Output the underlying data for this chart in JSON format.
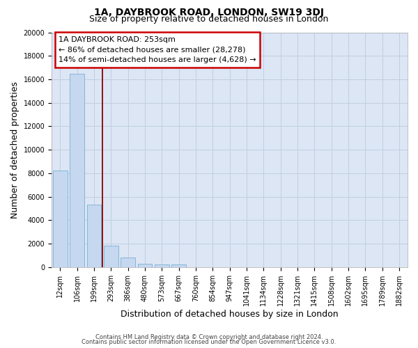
{
  "title1": "1A, DAYBROOK ROAD, LONDON, SW19 3DJ",
  "title2": "Size of property relative to detached houses in London",
  "xlabel": "Distribution of detached houses by size in London",
  "ylabel": "Number of detached properties",
  "categories": [
    "12sqm",
    "106sqm",
    "199sqm",
    "293sqm",
    "386sqm",
    "480sqm",
    "573sqm",
    "667sqm",
    "760sqm",
    "854sqm",
    "947sqm",
    "1041sqm",
    "1134sqm",
    "1228sqm",
    "1321sqm",
    "1415sqm",
    "1508sqm",
    "1602sqm",
    "1695sqm",
    "1789sqm",
    "1882sqm"
  ],
  "values": [
    8200,
    16500,
    5300,
    1800,
    800,
    300,
    200,
    200,
    0,
    0,
    0,
    0,
    0,
    0,
    0,
    0,
    0,
    0,
    0,
    0,
    0
  ],
  "bar_color": "#c5d8f0",
  "bar_edge_color": "#7bafd4",
  "vline_x": 2.5,
  "vline_color": "#8b0000",
  "annotation_box_color": "#cc0000",
  "annotation_line1": "1A DAYBROOK ROAD: 253sqm",
  "annotation_line2": "← 86% of detached houses are smaller (28,278)",
  "annotation_line3": "14% of semi-detached houses are larger (4,628) →",
  "ylim": [
    0,
    20000
  ],
  "yticks": [
    0,
    2000,
    4000,
    6000,
    8000,
    10000,
    12000,
    14000,
    16000,
    18000,
    20000
  ],
  "bg_color": "#dce6f5",
  "grid_color": "#c0cfe0",
  "footer1": "Contains HM Land Registry data © Crown copyright and database right 2024.",
  "footer2": "Contains public sector information licensed under the Open Government Licence v3.0.",
  "title1_fontsize": 10,
  "title2_fontsize": 9,
  "annotation_fontsize": 8,
  "tick_fontsize": 7,
  "axis_label_fontsize": 9,
  "footer_fontsize": 6
}
